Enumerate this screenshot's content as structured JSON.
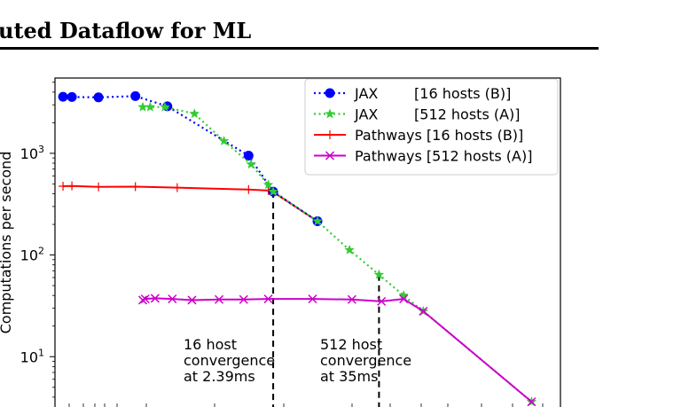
{
  "page": {
    "header_text": "uted Dataflow for ML"
  },
  "chart_data": {
    "type": "line",
    "title": "",
    "xlabel": "",
    "ylabel": "Computations per second",
    "y_scale": "log",
    "y_ticks": [
      {
        "value": 10,
        "base": "10",
        "exp": "1"
      },
      {
        "value": 100,
        "base": "10",
        "exp": "2"
      },
      {
        "value": 1000,
        "base": "10",
        "exp": "3"
      }
    ],
    "x_tick_labels_visible": false,
    "grid": false,
    "legend_position": "top-right",
    "series": [
      {
        "name": "JAX        [16 hosts (B)]",
        "color": "#0000ff",
        "linestyle": "dotted",
        "marker": "circle",
        "points": [
          [
            0.038,
            3600
          ],
          [
            0.056,
            3580
          ],
          [
            0.11,
            3550
          ],
          [
            0.185,
            3650
          ],
          [
            0.25,
            2900
          ],
          [
            0.415,
            950
          ],
          [
            0.465,
            420
          ],
          [
            0.555,
            215
          ]
        ]
      },
      {
        "name": "JAX        [512 hosts (A)]",
        "color": "#33cc33",
        "linestyle": "dotted",
        "marker": "star",
        "points": [
          [
            0.2,
            2850
          ],
          [
            0.215,
            2850
          ],
          [
            0.245,
            2850
          ],
          [
            0.305,
            2450
          ],
          [
            0.365,
            1320
          ],
          [
            0.42,
            780
          ],
          [
            0.455,
            490
          ],
          [
            0.465,
            420
          ],
          [
            0.555,
            215
          ],
          [
            0.62,
            112
          ],
          [
            0.68,
            64
          ],
          [
            0.73,
            40
          ],
          [
            0.77,
            28
          ],
          [
            0.99,
            3.6
          ]
        ]
      },
      {
        "name": "Pathways [16 hosts (B)]",
        "color": "#ff0000",
        "linestyle": "solid",
        "marker": "plus",
        "points": [
          [
            0.038,
            475
          ],
          [
            0.056,
            478
          ],
          [
            0.11,
            468
          ],
          [
            0.185,
            470
          ],
          [
            0.27,
            460
          ],
          [
            0.415,
            440
          ],
          [
            0.455,
            430
          ],
          [
            0.465,
            415
          ],
          [
            0.555,
            215
          ]
        ]
      },
      {
        "name": "Pathways [512 hosts (A)]",
        "color": "#cc00cc",
        "linestyle": "solid",
        "marker": "x",
        "points": [
          [
            0.2,
            36
          ],
          [
            0.205,
            37
          ],
          [
            0.225,
            37.5
          ],
          [
            0.26,
            37
          ],
          [
            0.3,
            36
          ],
          [
            0.355,
            36.5
          ],
          [
            0.405,
            36.5
          ],
          [
            0.455,
            37
          ],
          [
            0.545,
            37
          ],
          [
            0.625,
            36.5
          ],
          [
            0.685,
            35
          ],
          [
            0.73,
            37
          ],
          [
            0.77,
            28
          ],
          [
            0.99,
            3.6
          ]
        ]
      }
    ],
    "annotations": [
      {
        "lines": [
          "16 host",
          "convergence",
          "at 2.39ms"
        ]
      },
      {
        "lines": [
          "512 host",
          "convergence",
          "at 35ms"
        ]
      }
    ]
  }
}
